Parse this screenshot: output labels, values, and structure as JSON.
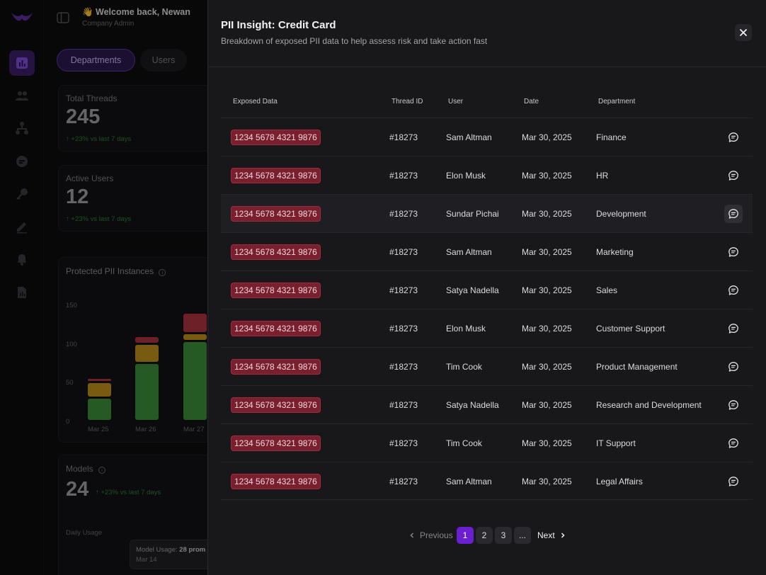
{
  "header": {
    "welcome": "👋 Welcome back, Newan",
    "role": "Company Admin"
  },
  "tabs": [
    {
      "label": "Departments"
    },
    {
      "label": "Users"
    }
  ],
  "stats": {
    "total_threads": {
      "label": "Total Threads",
      "value": "245",
      "delta": "+23% vs last 7 days"
    },
    "active_users": {
      "label": "Active Users",
      "value": "12",
      "delta": "+23% vs last 7 days"
    }
  },
  "chart_data": {
    "type": "bar",
    "title": "Protected PII Instances",
    "categories": [
      "Mar 25",
      "Mar 26",
      "Mar 27"
    ],
    "yticks": [
      "150",
      "100",
      "50",
      "0"
    ],
    "ylim": [
      0,
      150
    ],
    "stacked": true,
    "series": [
      {
        "color": "#3b8a3a",
        "values": [
          30,
          75,
          103
        ]
      },
      {
        "color": "#b88a1a",
        "values": [
          20,
          25,
          10
        ]
      },
      {
        "color": "#a8323c",
        "values": [
          6,
          10,
          27
        ]
      }
    ]
  },
  "models": {
    "label": "Models",
    "value": "24",
    "delta": "+23% vs last 7 days",
    "daily_label": "Daily Usage",
    "tooltip_label": "Model Usage:",
    "tooltip_value": "28 prom",
    "tooltip_date": "Mar 14"
  },
  "modal": {
    "title": "PII Insight: Credit Card",
    "subtitle": "Breakdown of exposed PII data to help assess risk and take action fast",
    "columns": {
      "exposed": "Exposed Data",
      "thread": "Thread ID",
      "user": "User",
      "date": "Date",
      "department": "Department"
    },
    "rows": [
      {
        "exposed": "1234 5678 4321 9876",
        "thread": "#18273",
        "user": "Sam Altman",
        "date": "Mar 30, 2025",
        "department": "Finance"
      },
      {
        "exposed": "1234 5678 4321 9876",
        "thread": "#18273",
        "user": "Elon Musk",
        "date": "Mar 30, 2025",
        "department": "HR"
      },
      {
        "exposed": "1234 5678 4321 9876",
        "thread": "#18273",
        "user": "Sundar Pichai",
        "date": "Mar 30, 2025",
        "department": "Development"
      },
      {
        "exposed": "1234 5678 4321 9876",
        "thread": "#18273",
        "user": "Sam Altman",
        "date": "Mar 30, 2025",
        "department": "Marketing"
      },
      {
        "exposed": "1234 5678 4321 9876",
        "thread": "#18273",
        "user": "Satya Nadella",
        "date": "Mar 30, 2025",
        "department": "Sales"
      },
      {
        "exposed": "1234 5678 4321 9876",
        "thread": "#18273",
        "user": "Elon Musk",
        "date": "Mar 30, 2025",
        "department": "Customer Support"
      },
      {
        "exposed": "1234 5678 4321 9876",
        "thread": "#18273",
        "user": "Tim Cook",
        "date": "Mar 30, 2025",
        "department": "Product Management"
      },
      {
        "exposed": "1234 5678 4321 9876",
        "thread": "#18273",
        "user": "Satya Nadella",
        "date": "Mar 30, 2025",
        "department": "Research and Development"
      },
      {
        "exposed": "1234 5678 4321 9876",
        "thread": "#18273",
        "user": "Tim Cook",
        "date": "Mar 30, 2025",
        "department": "IT Support"
      },
      {
        "exposed": "1234 5678 4321 9876",
        "thread": "#18273",
        "user": "Sam Altman",
        "date": "Mar 30, 2025",
        "department": "Legal Affairs"
      }
    ],
    "hover_row": 2,
    "pagination": {
      "previous": "Previous",
      "pages": [
        "1",
        "2",
        "3",
        "..."
      ],
      "current": "1",
      "next": "Next"
    }
  },
  "colors": {
    "accent": "#6a1fd1",
    "exposed_badge": "#7a1f2e"
  },
  "icons": {
    "rail": [
      "bar-chart-icon",
      "users-icon",
      "org-tree-icon",
      "chat-bubble-icon",
      "key-icon",
      "pen-icon",
      "bell-icon",
      "report-icon"
    ],
    "row_action": "message-icon",
    "close": "close-icon"
  }
}
